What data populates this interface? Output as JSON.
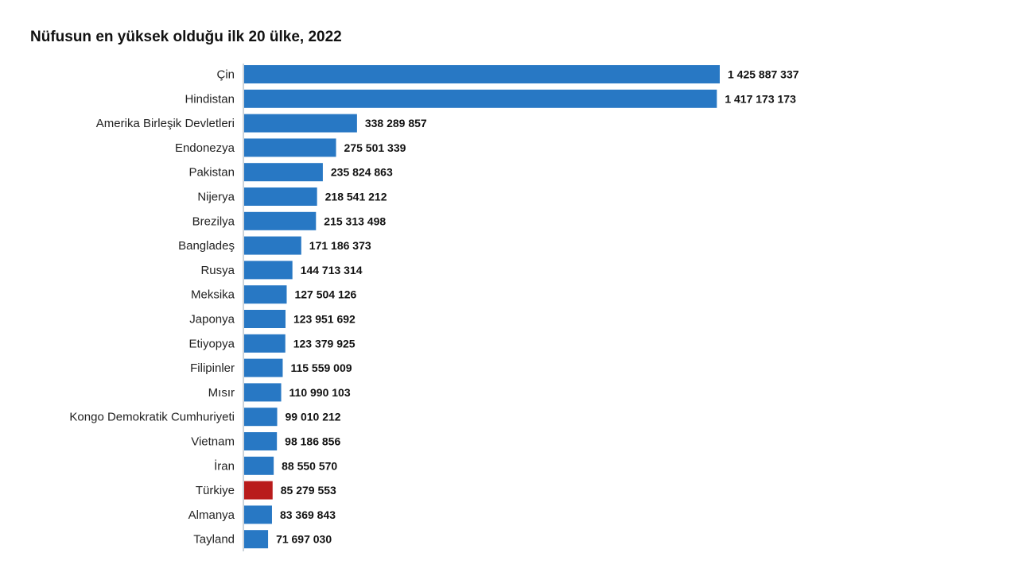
{
  "chart_data": {
    "type": "bar",
    "orientation": "horizontal",
    "title": "Nüfusun en yüksek olduğu ilk 20 ülke, 2022",
    "categories": [
      "Çin",
      "Hindistan",
      "Amerika Birleşik Devletleri",
      "Endonezya",
      "Pakistan",
      "Nijerya",
      "Brezilya",
      "Bangladeş",
      "Rusya",
      "Meksika",
      "Japonya",
      "Etiyopya",
      "Filipinler",
      "Mısır",
      "Kongo Demokratik Cumhuriyeti",
      "Vietnam",
      "İran",
      "Türkiye",
      "Almanya",
      "Tayland"
    ],
    "values": [
      1425887337,
      1417173173,
      338289857,
      275501339,
      235824863,
      218541212,
      215313498,
      171186373,
      144713314,
      127504126,
      123951692,
      123379925,
      115559009,
      110990103,
      99010212,
      98186856,
      88550570,
      85279553,
      83369843,
      71697030
    ],
    "value_labels": [
      "1 425 887 337",
      "1 417 173 173",
      "338 289 857",
      "275 501 339",
      "235 824 863",
      "218 541 212",
      "215 313 498",
      "171 186 373",
      "144 713 314",
      "127 504 126",
      "123 951 692",
      "123 379 925",
      "115 559 009",
      "110 990 103",
      "99 010 212",
      "98 186 856",
      "88 550 570",
      "85 279 553",
      "83 369 843",
      "71 697 030"
    ],
    "highlight_category": "Türkiye",
    "colors": {
      "default": "#2878c4",
      "highlight": "#b91c1c"
    },
    "xlim": [
      0,
      1425887337
    ],
    "grid": false
  }
}
